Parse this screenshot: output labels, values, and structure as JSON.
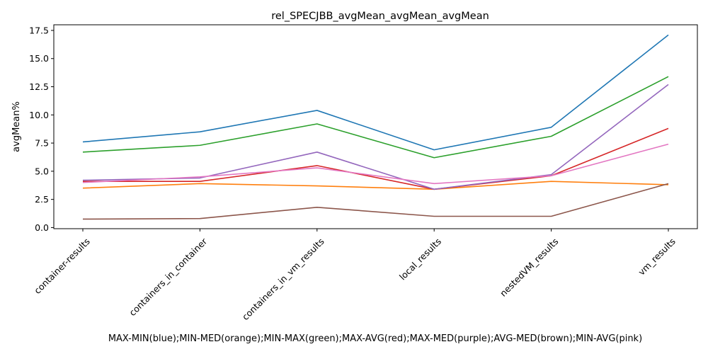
{
  "chart_data": {
    "type": "line",
    "title": "rel_SPECJBB_avgMean_avgMean_avgMean",
    "xlabel": "MAX-MIN(blue);MIN-MED(orange);MIN-MAX(green);MAX-AVG(red);MAX-MED(purple);AVG-MED(brown);MIN-AVG(pink)",
    "ylabel": "avgMean%",
    "categories": [
      "container-results",
      "containers_in_container",
      "containers_in_vm_results",
      "local_results",
      "nestedVM_results",
      "vm_results"
    ],
    "ylim": [
      -0.1,
      18.0
    ],
    "yticks": [
      0.0,
      2.5,
      5.0,
      7.5,
      10.0,
      12.5,
      15.0,
      17.5
    ],
    "ytick_labels": [
      "0.0",
      "2.5",
      "5.0",
      "7.5",
      "10.0",
      "12.5",
      "15.0",
      "17.5"
    ],
    "grid": false,
    "series": [
      {
        "color": "#1f77b4",
        "values": [
          7.6,
          8.5,
          10.4,
          6.9,
          8.9,
          17.1
        ]
      },
      {
        "color": "#ff7f0e",
        "values": [
          3.5,
          3.9,
          3.7,
          3.4,
          4.1,
          3.8
        ]
      },
      {
        "color": "#2ca02c",
        "values": [
          6.7,
          7.3,
          9.2,
          6.2,
          8.1,
          13.4
        ]
      },
      {
        "color": "#d62728",
        "values": [
          4.1,
          4.1,
          5.5,
          3.4,
          4.6,
          8.8
        ]
      },
      {
        "color": "#9467bd",
        "values": [
          4.2,
          4.4,
          6.7,
          3.4,
          4.7,
          12.7
        ]
      },
      {
        "color": "#8c564b",
        "values": [
          0.75,
          0.8,
          1.8,
          1.0,
          1.0,
          3.9
        ]
      },
      {
        "color": "#e377c2",
        "values": [
          4.0,
          4.5,
          5.3,
          3.9,
          4.6,
          7.4
        ]
      }
    ]
  }
}
